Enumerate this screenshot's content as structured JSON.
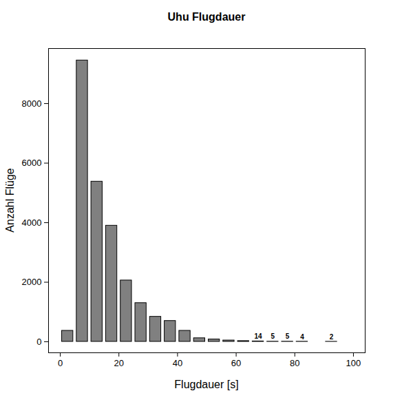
{
  "chart_data": {
    "type": "bar",
    "title": "Uhu Flugdauer",
    "x_label": "Flugdauer [s]",
    "y_label": "Anzahl Flüge",
    "bins": [
      0,
      5,
      10,
      15,
      20,
      25,
      30,
      35,
      40,
      45,
      50,
      55,
      60,
      65,
      70,
      75,
      80,
      85,
      90,
      95,
      100
    ],
    "values": [
      370,
      9450,
      5380,
      3900,
      2060,
      1300,
      840,
      700,
      370,
      120,
      80,
      45,
      25,
      14,
      5,
      5,
      4,
      0,
      2,
      0
    ],
    "value_labels": [
      null,
      null,
      null,
      null,
      null,
      null,
      null,
      null,
      null,
      null,
      null,
      null,
      null,
      "14",
      "5",
      "5",
      "4",
      null,
      "2",
      null
    ],
    "data_labels": true,
    "color": "#808080",
    "xlim": [
      -4,
      104
    ],
    "xticks": [
      0,
      20,
      40,
      60,
      80,
      100
    ],
    "ylim": [
      -370,
      9850
    ],
    "yticks": [
      0,
      2000,
      4000,
      6000,
      8000
    ],
    "grid": false
  }
}
